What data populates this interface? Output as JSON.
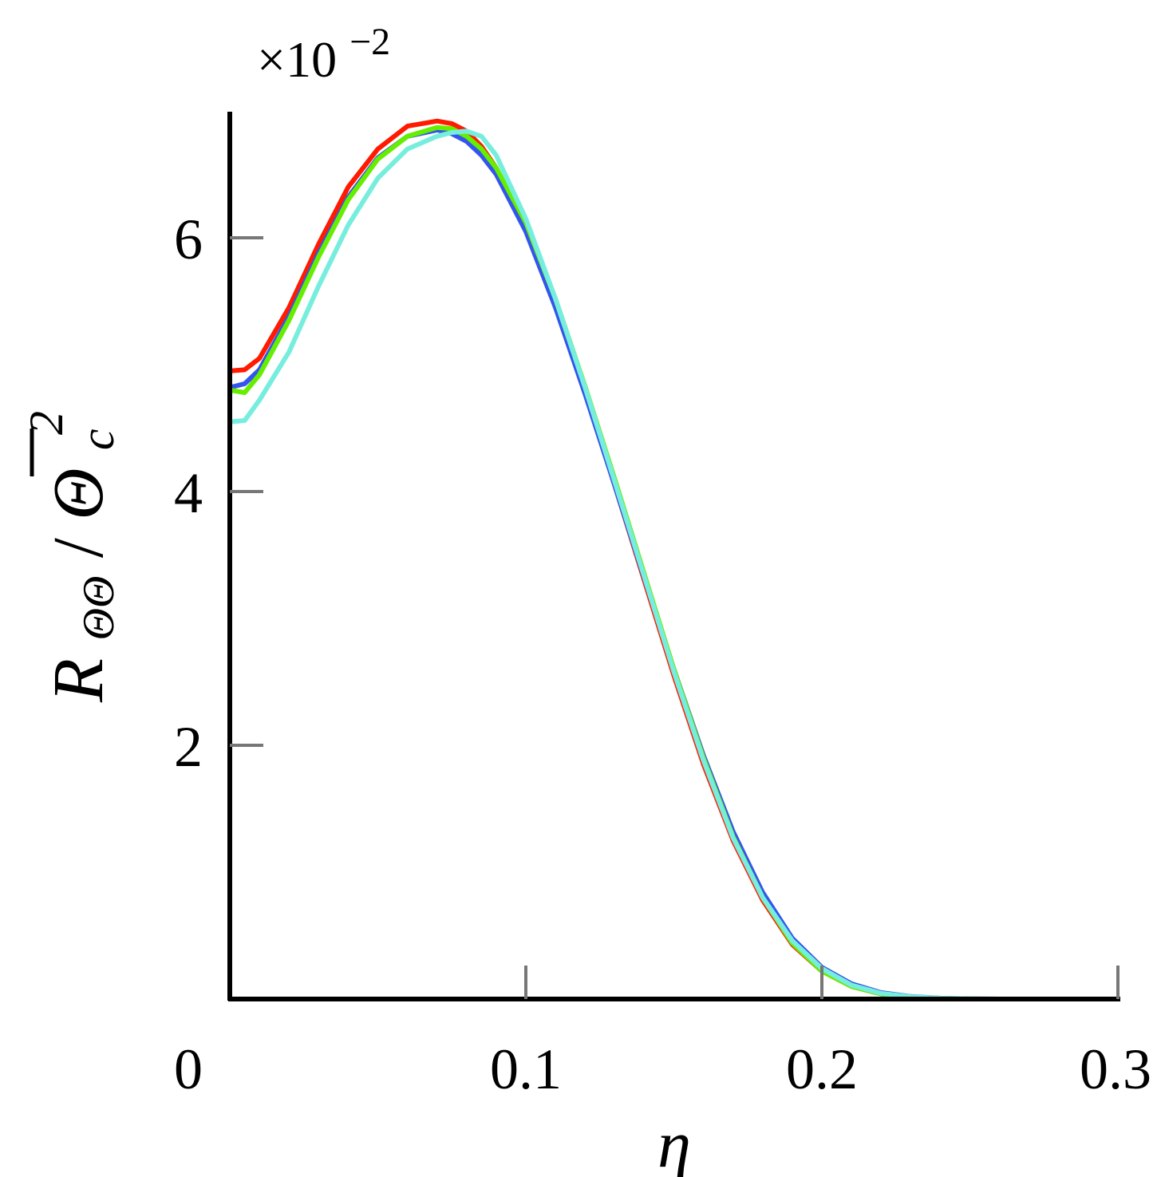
{
  "chart_data": {
    "type": "line",
    "title": "",
    "xlabel": "η",
    "ylabel": {
      "main": "R",
      "sub": "ΘΘ",
      "slash": "/",
      "denominator": "Θ",
      "denominator_sub": "c",
      "denominator_sup": "2"
    },
    "y_multiplier": {
      "base": "×10",
      "exponent": "−2"
    },
    "xlim": [
      0,
      0.3
    ],
    "ylim": [
      0,
      7
    ],
    "x_ticks": [
      {
        "value": 0,
        "label": "0"
      },
      {
        "value": 0.1,
        "label": "0.1"
      },
      {
        "value": 0.2,
        "label": "0.2"
      },
      {
        "value": 0.3,
        "label": "0.3"
      }
    ],
    "y_ticks": [
      {
        "value": 2,
        "label": "2"
      },
      {
        "value": 4,
        "label": "4"
      },
      {
        "value": 6,
        "label": "6"
      }
    ],
    "grid": false,
    "legend": "none",
    "series": [
      {
        "color": "#ff1a00",
        "x": [
          0,
          0.005,
          0.01,
          0.02,
          0.03,
          0.04,
          0.05,
          0.06,
          0.07,
          0.075,
          0.08,
          0.085,
          0.09,
          0.1,
          0.11,
          0.12,
          0.13,
          0.14,
          0.15,
          0.16,
          0.17,
          0.18,
          0.19,
          0.2,
          0.21,
          0.22,
          0.23,
          0.24,
          0.25,
          0.26,
          0.27,
          0.28,
          0.29,
          0.3
        ],
        "y": [
          4.95,
          4.96,
          5.05,
          5.45,
          5.95,
          6.4,
          6.7,
          6.88,
          6.92,
          6.9,
          6.84,
          6.72,
          6.55,
          6.08,
          5.48,
          4.8,
          4.05,
          3.3,
          2.55,
          1.85,
          1.25,
          0.78,
          0.43,
          0.22,
          0.1,
          0.04,
          0.015,
          0.005,
          0,
          0,
          0,
          0,
          0,
          0
        ]
      },
      {
        "color": "#3355ee",
        "x": [
          0,
          0.005,
          0.01,
          0.02,
          0.03,
          0.04,
          0.05,
          0.06,
          0.07,
          0.075,
          0.08,
          0.085,
          0.09,
          0.1,
          0.11,
          0.12,
          0.13,
          0.14,
          0.15,
          0.16,
          0.17,
          0.18,
          0.19,
          0.2,
          0.21,
          0.22,
          0.23,
          0.24,
          0.25,
          0.26,
          0.27,
          0.28,
          0.29,
          0.3
        ],
        "y": [
          4.82,
          4.85,
          4.96,
          5.38,
          5.88,
          6.32,
          6.63,
          6.8,
          6.85,
          6.82,
          6.76,
          6.65,
          6.5,
          6.05,
          5.45,
          4.77,
          4.05,
          3.32,
          2.6,
          1.92,
          1.32,
          0.84,
          0.48,
          0.25,
          0.12,
          0.05,
          0.02,
          0.007,
          0.002,
          0,
          0,
          0,
          0,
          0
        ]
      },
      {
        "color": "#66ee00",
        "x": [
          0,
          0.005,
          0.01,
          0.02,
          0.03,
          0.04,
          0.05,
          0.06,
          0.07,
          0.075,
          0.08,
          0.085,
          0.09,
          0.1,
          0.11,
          0.12,
          0.13,
          0.14,
          0.15,
          0.16,
          0.17,
          0.18,
          0.19,
          0.2,
          0.21,
          0.22,
          0.23,
          0.24,
          0.25,
          0.26,
          0.27,
          0.28,
          0.29,
          0.3
        ],
        "y": [
          4.8,
          4.78,
          4.92,
          5.35,
          5.85,
          6.3,
          6.62,
          6.8,
          6.87,
          6.86,
          6.8,
          6.7,
          6.55,
          6.12,
          5.52,
          4.83,
          4.1,
          3.35,
          2.6,
          1.9,
          1.28,
          0.8,
          0.44,
          0.22,
          0.1,
          0.04,
          0.015,
          0.005,
          0,
          0,
          0,
          0,
          0,
          0
        ]
      },
      {
        "color": "#77eedd",
        "x": [
          0,
          0.005,
          0.01,
          0.02,
          0.03,
          0.04,
          0.05,
          0.06,
          0.07,
          0.075,
          0.08,
          0.085,
          0.09,
          0.1,
          0.11,
          0.12,
          0.13,
          0.14,
          0.15,
          0.16,
          0.17,
          0.18,
          0.19,
          0.2,
          0.21,
          0.22,
          0.23,
          0.24,
          0.25,
          0.26,
          0.27,
          0.28,
          0.29,
          0.3
        ],
        "y": [
          4.55,
          4.56,
          4.72,
          5.1,
          5.62,
          6.1,
          6.47,
          6.7,
          6.8,
          6.83,
          6.84,
          6.8,
          6.65,
          6.15,
          5.52,
          4.82,
          4.08,
          3.33,
          2.58,
          1.88,
          1.27,
          0.8,
          0.46,
          0.24,
          0.11,
          0.045,
          0.018,
          0.006,
          0.002,
          0,
          0,
          0,
          0,
          0
        ]
      }
    ]
  },
  "colors": {
    "axis": "#000000",
    "tick": "#777777"
  }
}
